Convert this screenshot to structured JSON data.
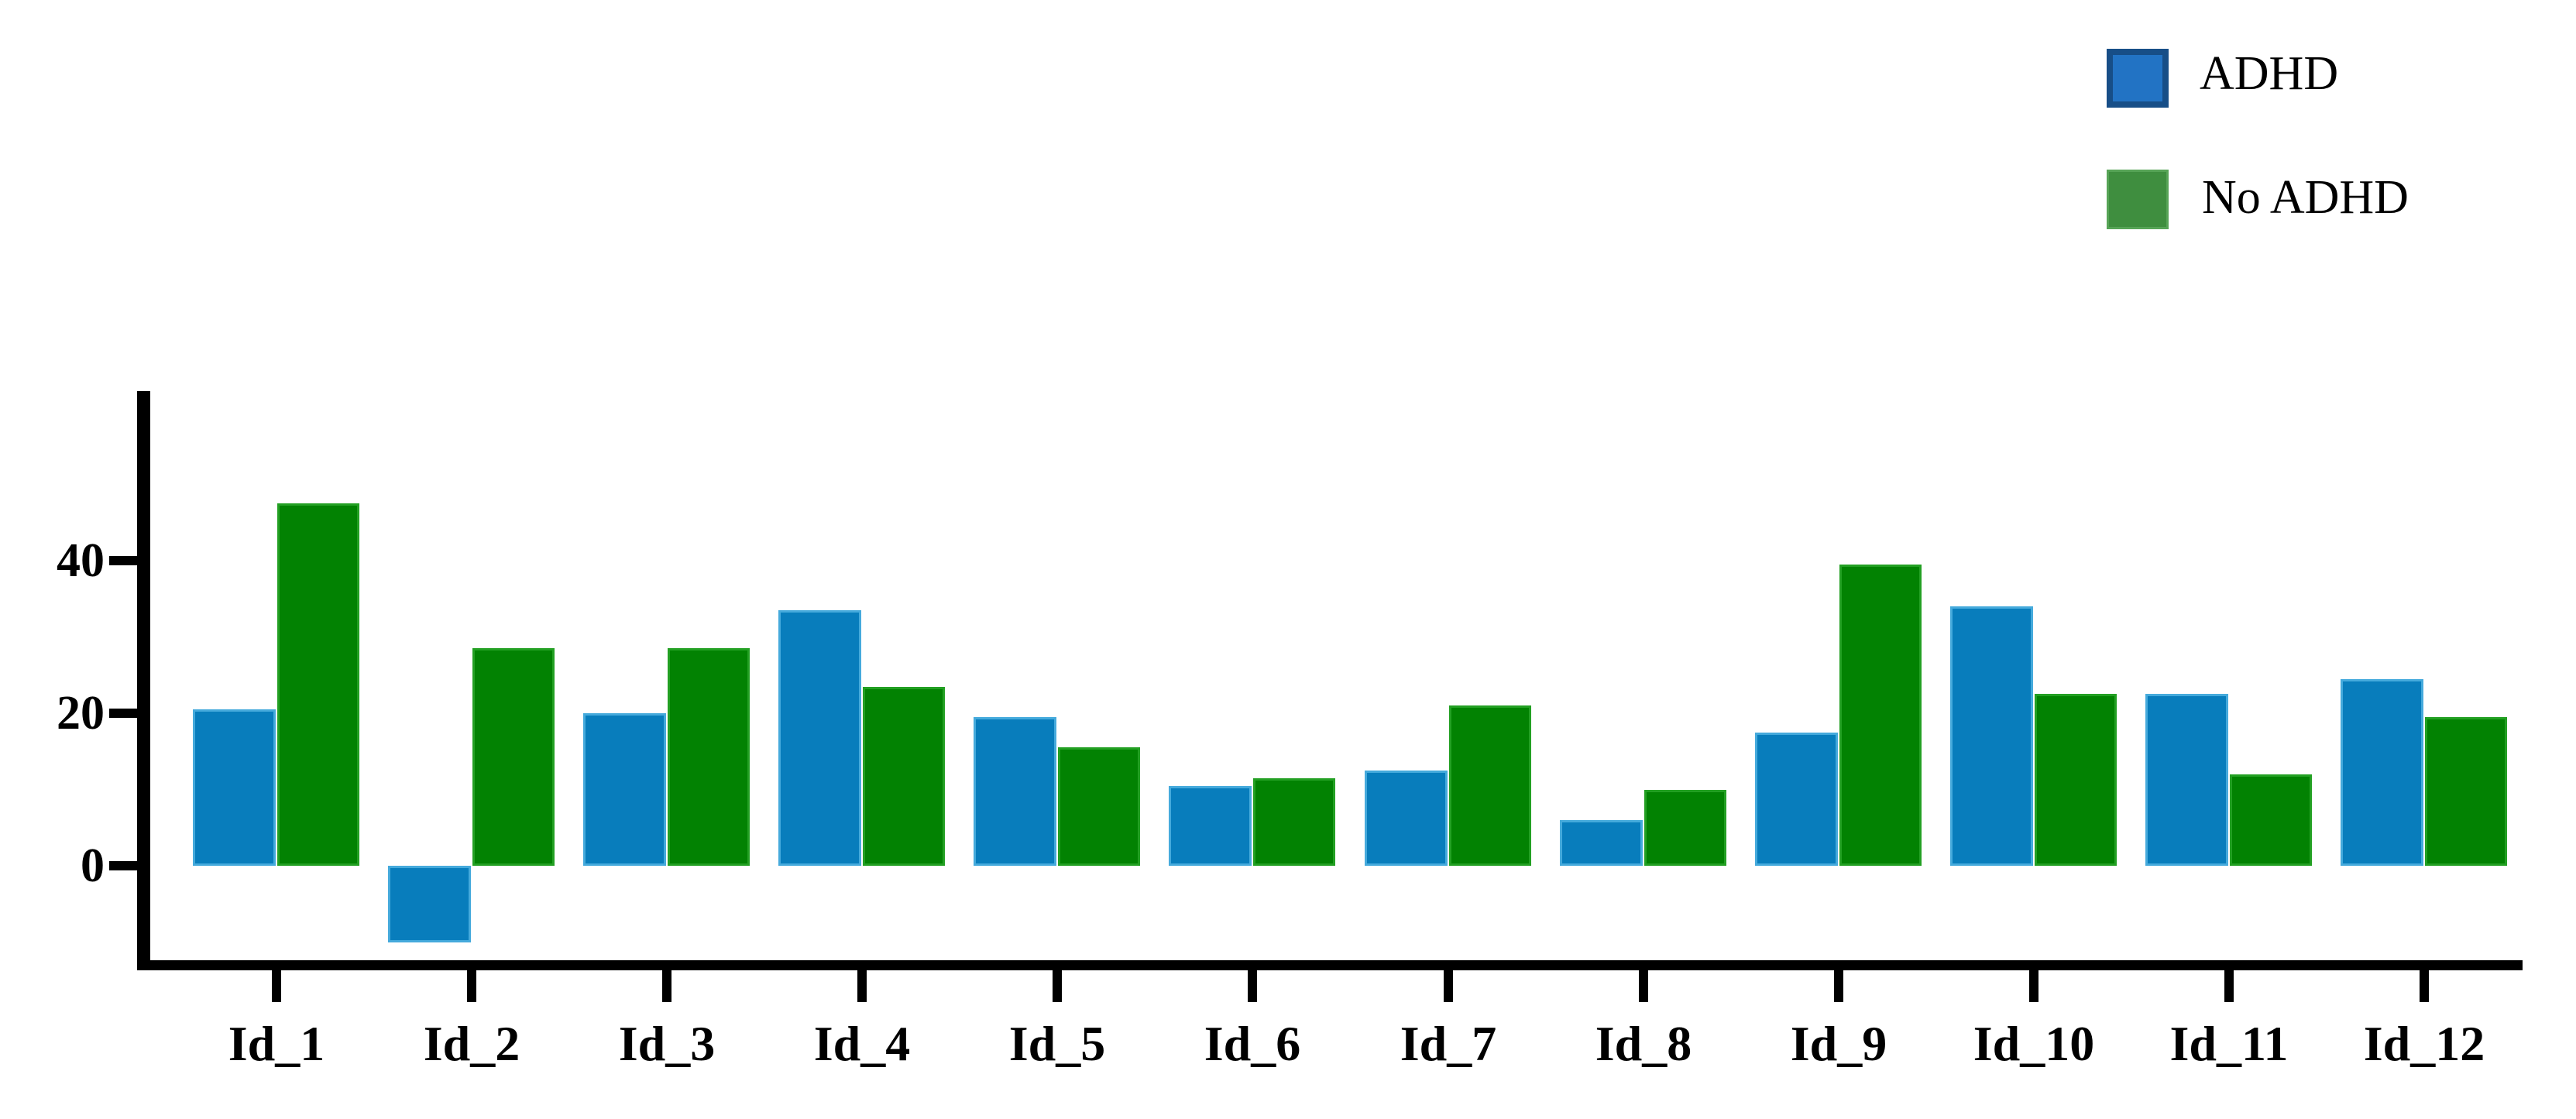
{
  "chart_data": {
    "type": "bar",
    "title": "",
    "xlabel": "",
    "ylabel": "",
    "categories": [
      "Id_1",
      "Id_2",
      "Id_3",
      "Id_4",
      "Id_5",
      "Id_6",
      "Id_7",
      "Id_8",
      "Id_9",
      "Id_10",
      "Id_11",
      "Id_12"
    ],
    "series": [
      {
        "name": "ADHD",
        "color": "#087dbc",
        "edge_color": "#45aadc",
        "values": [
          20.5,
          -10,
          20,
          33.5,
          19.5,
          10.5,
          12.5,
          6,
          17.5,
          34,
          22.5,
          24.5
        ]
      },
      {
        "name": "No ADHD",
        "color": "#028202",
        "edge_color": "#23a023",
        "values": [
          47.5,
          28.5,
          28.5,
          23.5,
          15.5,
          11.5,
          21,
          10,
          39.5,
          22.5,
          12,
          19.5
        ]
      }
    ],
    "y_ticks": [
      0,
      20,
      40
    ],
    "ylim": [
      -15,
      62
    ],
    "grid": false,
    "legend_position": "top-right"
  },
  "legend": {
    "items": [
      {
        "label": "ADHD",
        "fill": "#2273c4",
        "border": "#174e87"
      },
      {
        "label": "No ADHD",
        "fill": "#3f8e3f",
        "border": "#57a457"
      }
    ]
  },
  "axis": {
    "line_color": "#000000",
    "text_color": "#000000"
  }
}
